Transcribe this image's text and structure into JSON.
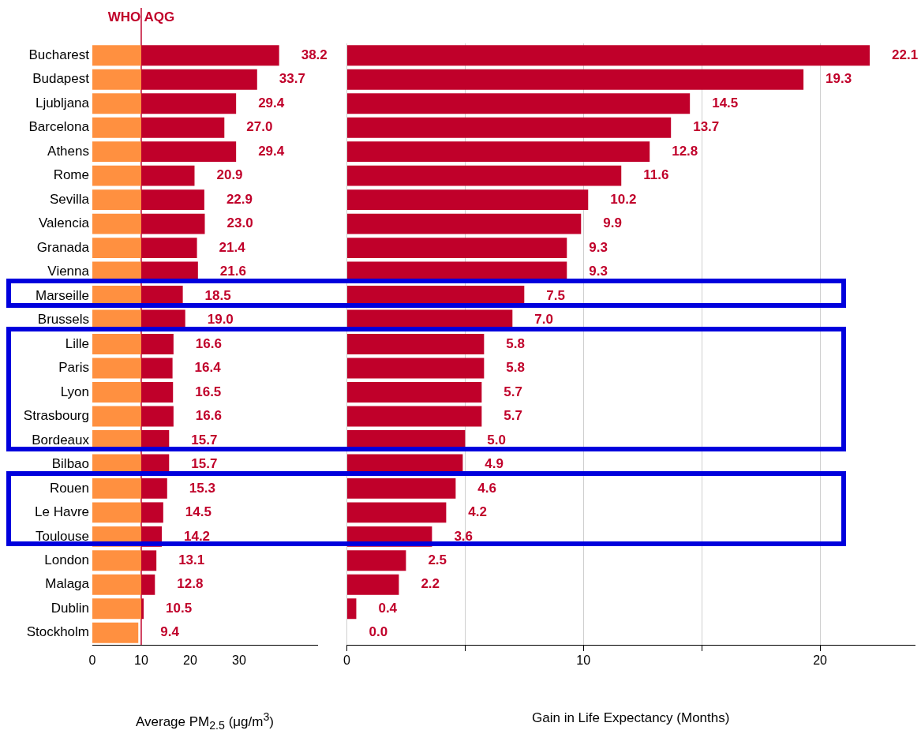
{
  "chart_data": [
    {
      "type": "bar",
      "orientation": "horizontal",
      "stacked": true,
      "categories": [
        "Bucharest",
        "Budapest",
        "Ljubljana",
        "Barcelona",
        "Athens",
        "Rome",
        "Sevilla",
        "Valencia",
        "Granada",
        "Vienna",
        "Marseille",
        "Brussels",
        "Lille",
        "Paris",
        "Lyon",
        "Strasbourg",
        "Bordeaux",
        "Bilbao",
        "Rouen",
        "Le Havre",
        "Toulouse",
        "London",
        "Malaga",
        "Dublin",
        "Stockholm"
      ],
      "series": [
        {
          "color": "#ff9040",
          "values": [
            10,
            10,
            10,
            10,
            10,
            10,
            10,
            10,
            10,
            10,
            10,
            10,
            10,
            10,
            10,
            10,
            10,
            10,
            10,
            10,
            10,
            10,
            10,
            10,
            9.4
          ]
        },
        {
          "color": "#c0002a",
          "values": [
            28.2,
            23.7,
            19.4,
            17.0,
            19.4,
            10.9,
            12.9,
            13.0,
            11.4,
            11.6,
            8.5,
            9.0,
            6.6,
            6.4,
            6.5,
            6.6,
            5.7,
            5.7,
            5.3,
            4.5,
            4.2,
            3.1,
            2.8,
            0.5,
            null
          ]
        }
      ],
      "totals": [
        "38.2",
        "33.7",
        "29.4",
        "27.0",
        "29.4",
        "20.9",
        "22.9",
        "23.0",
        "21.4",
        "21.6",
        "18.5",
        "19.0",
        "16.6",
        "16.4",
        "16.5",
        "16.6",
        "15.7",
        "15.7",
        "15.3",
        "14.5",
        "14.2",
        "13.1",
        "12.8",
        "10.5",
        "9.4"
      ],
      "xlim": [
        0,
        46
      ],
      "xticks": [
        0,
        10,
        20,
        30
      ],
      "xlabel": "Average PM$_{2.5}$ (μg/m$^{3}$)",
      "grid": false,
      "legend": false,
      "ref_lines": [
        {
          "axis": "x",
          "value": 10,
          "label": "WHO AQG",
          "color": "#c0002a"
        }
      ]
    },
    {
      "type": "bar",
      "orientation": "horizontal",
      "categories": [
        null,
        null,
        null,
        null,
        null,
        null,
        null,
        null,
        null,
        null,
        null,
        null,
        null,
        null,
        null,
        null,
        null,
        null,
        null,
        null,
        null,
        null,
        null,
        null,
        null
      ],
      "series": [
        {
          "color": "#c0002a",
          "values": [
            22.1,
            19.3,
            14.5,
            13.7,
            12.8,
            11.6,
            10.2,
            9.9,
            9.3,
            9.3,
            7.5,
            7.0,
            5.8,
            5.8,
            5.7,
            5.7,
            5.0,
            4.9,
            4.6,
            4.2,
            3.6,
            2.5,
            2.2,
            0.4,
            0.0
          ],
          "value_labels": [
            "22.1",
            "19.3",
            "14.5",
            "13.7",
            "12.8",
            "11.6",
            "10.2",
            "9.9",
            "9.3",
            "9.3",
            "7.5",
            "7.0",
            "5.8",
            "5.8",
            "5.7",
            "5.7",
            "5.0",
            "4.9",
            "4.6",
            "4.2",
            "3.6",
            "2.5",
            "2.2",
            "0.4",
            "0.0"
          ]
        }
      ],
      "xlim": [
        0,
        24
      ],
      "xticks": [
        0,
        {
          "value": 5,
          "label": null
        },
        10,
        {
          "value": 15,
          "label": null
        },
        20
      ],
      "xlabel": "Gain in Life Expectancy (Months)",
      "grid": "x",
      "legend": false,
      "tick_labels": "x"
    }
  ]
}
